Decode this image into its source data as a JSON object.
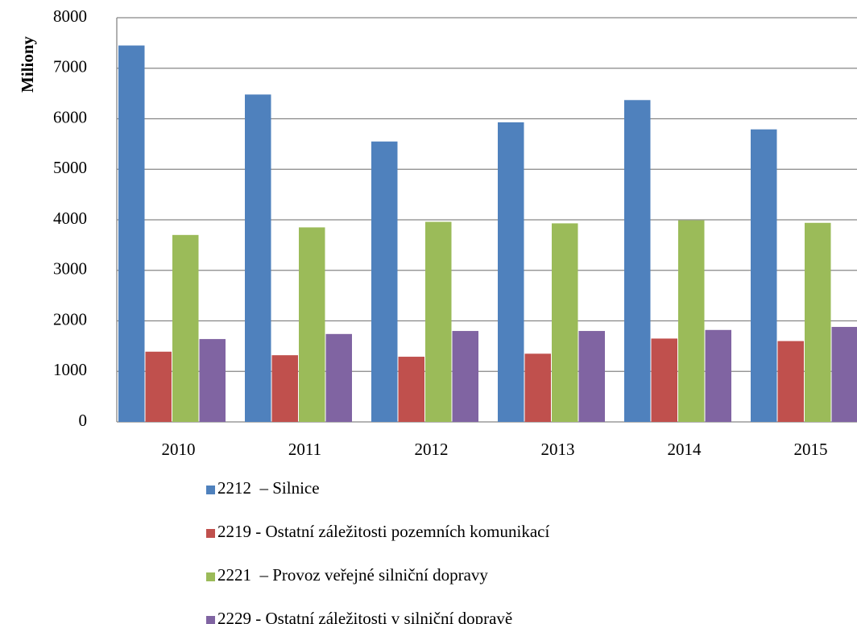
{
  "chart_data": {
    "type": "bar",
    "y_label": "Miliony",
    "categories": [
      "2010",
      "2011",
      "2012",
      "2013",
      "2014",
      "2015"
    ],
    "series": [
      {
        "name": "2212  – Silnice",
        "color": "#4f81bd",
        "values": [
          7450,
          6480,
          5550,
          5930,
          6370,
          5790
        ]
      },
      {
        "name": "2219 - Ostatní záležitosti pozemních komunikací",
        "color": "#c0504d",
        "values": [
          1390,
          1320,
          1290,
          1350,
          1650,
          1600
        ]
      },
      {
        "name": "2221  – Provoz veřejné silniční dopravy",
        "color": "#9bbb59",
        "values": [
          3700,
          3850,
          3960,
          3930,
          3990,
          3940
        ]
      },
      {
        "name": "2229 - Ostatní záležitosti v silniční dopravě",
        "color": "#8064a2",
        "values": [
          1640,
          1740,
          1800,
          1800,
          1820,
          1880
        ]
      }
    ],
    "ylim": [
      0,
      8000
    ],
    "yticks": [
      0,
      1000,
      2000,
      3000,
      4000,
      5000,
      6000,
      7000,
      8000
    ],
    "grid": true,
    "legend": "bottom"
  }
}
